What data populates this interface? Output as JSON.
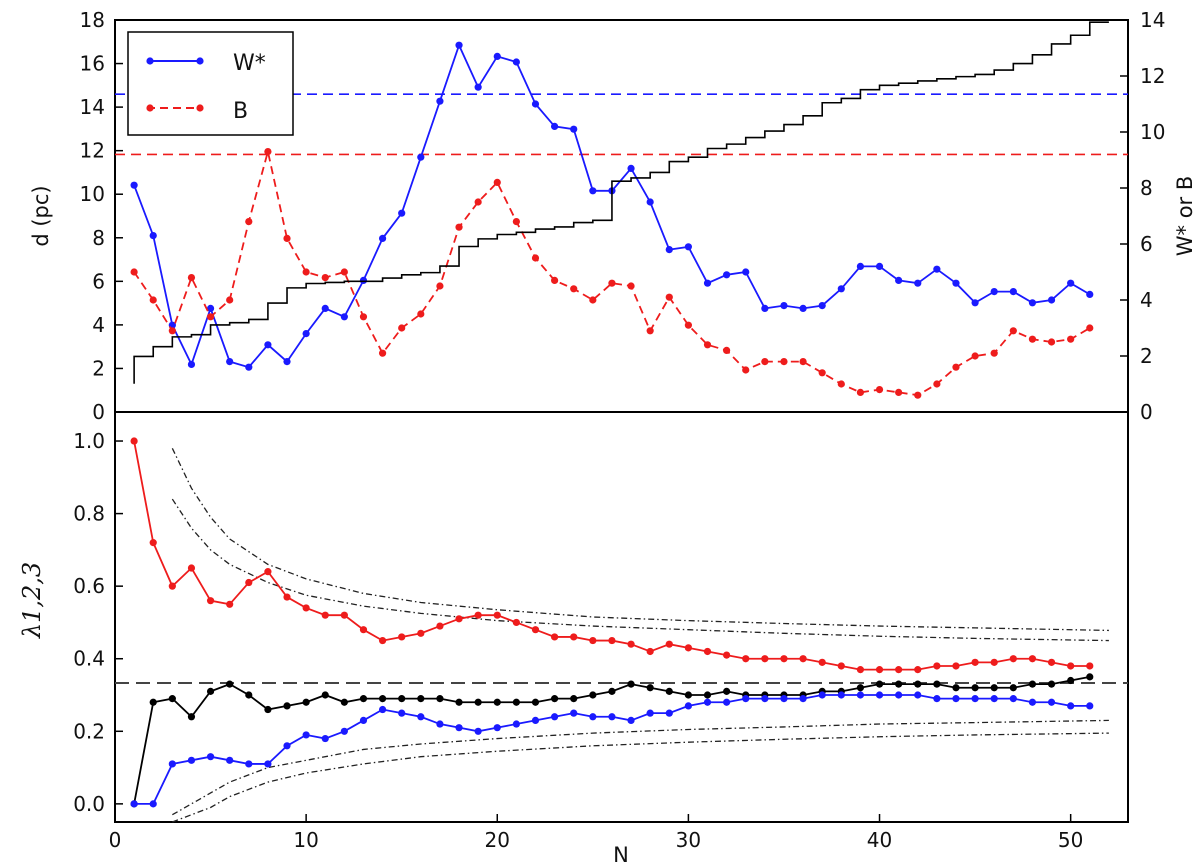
{
  "chart_data": [
    {
      "type": "line",
      "panel": "top",
      "xlabel": "",
      "ylabel": "d (pc)",
      "ylabel_right": "W* or B",
      "xlim": [
        0,
        53
      ],
      "ylim": [
        0,
        18
      ],
      "ylim_right": [
        0,
        14
      ],
      "yticks": [
        "0",
        "2",
        "4",
        "6",
        "8",
        "10",
        "12",
        "14",
        "16",
        "18"
      ],
      "yticks_right": [
        "0",
        "2",
        "4",
        "6",
        "8",
        "10",
        "12",
        "14"
      ],
      "legend": {
        "placement": "top-left",
        "entries": [
          "W*",
          "B"
        ]
      },
      "series": [
        {
          "name": "W*",
          "axis": "right",
          "color": "#1a1aff",
          "style": "solid-markers",
          "x": [
            1,
            2,
            3,
            4,
            5,
            6,
            7,
            8,
            9,
            10,
            11,
            12,
            13,
            14,
            15,
            16,
            17,
            18,
            19,
            20,
            21,
            22,
            23,
            24,
            25,
            26,
            27,
            28,
            29,
            30,
            31,
            32,
            33,
            34,
            35,
            36,
            37,
            38,
            39,
            40,
            41,
            42,
            43,
            44,
            45,
            46,
            47,
            48,
            49,
            50,
            51
          ],
          "values": [
            8.1,
            6.3,
            3.1,
            1.7,
            3.7,
            1.8,
            1.6,
            2.4,
            1.8,
            2.8,
            3.7,
            3.4,
            4.7,
            6.2,
            7.1,
            9.1,
            11.1,
            13.1,
            11.6,
            12.7,
            12.5,
            11.0,
            10.2,
            10.1,
            7.9,
            7.9,
            8.7,
            7.5,
            5.8,
            5.9,
            4.6,
            4.9,
            5.0,
            3.7,
            3.8,
            3.7,
            3.8,
            4.4,
            5.2,
            5.2,
            4.7,
            4.6,
            5.1,
            4.6,
            3.9,
            4.3,
            4.3,
            3.9,
            4.0,
            4.6,
            4.2
          ]
        },
        {
          "name": "B",
          "axis": "right",
          "color": "#ee1c1c",
          "style": "dashed-markers",
          "x": [
            1,
            2,
            3,
            4,
            5,
            6,
            7,
            8,
            9,
            10,
            11,
            12,
            13,
            14,
            15,
            16,
            17,
            18,
            19,
            20,
            21,
            22,
            23,
            24,
            25,
            26,
            27,
            28,
            29,
            30,
            31,
            32,
            33,
            34,
            35,
            36,
            37,
            38,
            39,
            40,
            41,
            42,
            43,
            44,
            45,
            46,
            47,
            48,
            49,
            50,
            51
          ],
          "values": [
            5.0,
            4.0,
            2.9,
            4.8,
            3.4,
            4.0,
            6.8,
            9.3,
            6.2,
            5.0,
            4.8,
            5.0,
            3.4,
            2.1,
            3.0,
            3.5,
            4.5,
            6.6,
            7.5,
            8.2,
            6.8,
            5.5,
            4.7,
            4.4,
            4.0,
            4.6,
            4.5,
            2.9,
            4.1,
            3.1,
            2.4,
            2.2,
            1.5,
            1.8,
            1.8,
            1.8,
            1.4,
            1.0,
            0.7,
            0.8,
            0.7,
            0.6,
            1.0,
            1.6,
            2.0,
            2.1,
            2.9,
            2.6,
            2.5,
            2.6,
            3.0
          ]
        },
        {
          "name": "d (pc)",
          "axis": "left",
          "color": "#000000",
          "style": "step",
          "x": [
            1,
            2,
            3,
            4,
            5,
            6,
            7,
            8,
            9,
            10,
            11,
            12,
            13,
            14,
            15,
            16,
            17,
            18,
            19,
            20,
            21,
            22,
            23,
            24,
            25,
            26,
            27,
            28,
            29,
            30,
            31,
            32,
            33,
            34,
            35,
            36,
            37,
            38,
            39,
            40,
            41,
            42,
            43,
            44,
            45,
            46,
            47,
            48,
            49,
            50,
            51,
            52
          ],
          "values": [
            2.55,
            3.0,
            3.45,
            3.55,
            4.0,
            4.1,
            4.25,
            5.0,
            5.7,
            5.9,
            5.95,
            6.0,
            6.0,
            6.15,
            6.3,
            6.4,
            6.7,
            7.6,
            7.95,
            8.15,
            8.25,
            8.4,
            8.5,
            8.7,
            8.8,
            10.6,
            10.75,
            11.0,
            11.5,
            11.7,
            12.1,
            12.3,
            12.6,
            12.9,
            13.2,
            13.6,
            14.2,
            14.4,
            14.8,
            15.0,
            15.1,
            15.2,
            15.3,
            15.4,
            15.5,
            15.7,
            16.0,
            16.4,
            16.9,
            17.3,
            17.9,
            17.9
          ]
        }
      ],
      "hlines": [
        {
          "axis": "right",
          "value": 11.35,
          "color": "#1a1aff",
          "style": "dashed"
        },
        {
          "axis": "right",
          "value": 9.2,
          "color": "#ee1c1c",
          "style": "dashed"
        }
      ]
    },
    {
      "type": "line",
      "panel": "bottom",
      "xlabel": "N",
      "ylabel": "λ1,2,3",
      "xlim": [
        0,
        53
      ],
      "ylim": [
        -0.05,
        1.08
      ],
      "xticks": [
        "0",
        "10",
        "20",
        "30",
        "40",
        "50"
      ],
      "yticks": [
        "0.0",
        "0.2",
        "0.4",
        "0.6",
        "0.8",
        "1.0"
      ],
      "series": [
        {
          "axis": "left",
          "color": "#ee1c1c",
          "style": "solid-markers",
          "x": [
            1,
            2,
            3,
            4,
            5,
            6,
            7,
            8,
            9,
            10,
            11,
            12,
            13,
            14,
            15,
            16,
            17,
            18,
            19,
            20,
            21,
            22,
            23,
            24,
            25,
            26,
            27,
            28,
            29,
            30,
            31,
            32,
            33,
            34,
            35,
            36,
            37,
            38,
            39,
            40,
            41,
            42,
            43,
            44,
            45,
            46,
            47,
            48,
            49,
            50,
            51
          ],
          "values": [
            1.0,
            0.72,
            0.6,
            0.65,
            0.56,
            0.55,
            0.61,
            0.64,
            0.57,
            0.54,
            0.52,
            0.52,
            0.48,
            0.45,
            0.46,
            0.47,
            0.49,
            0.51,
            0.52,
            0.52,
            0.5,
            0.48,
            0.46,
            0.46,
            0.45,
            0.45,
            0.44,
            0.42,
            0.44,
            0.43,
            0.42,
            0.41,
            0.4,
            0.4,
            0.4,
            0.4,
            0.39,
            0.38,
            0.37,
            0.37,
            0.37,
            0.37,
            0.38,
            0.38,
            0.39,
            0.39,
            0.4,
            0.4,
            0.39,
            0.38,
            0.38
          ]
        },
        {
          "axis": "left",
          "color": "#000000",
          "style": "solid-markers",
          "x": [
            1,
            2,
            3,
            4,
            5,
            6,
            7,
            8,
            9,
            10,
            11,
            12,
            13,
            14,
            15,
            16,
            17,
            18,
            19,
            20,
            21,
            22,
            23,
            24,
            25,
            26,
            27,
            28,
            29,
            30,
            31,
            32,
            33,
            34,
            35,
            36,
            37,
            38,
            39,
            40,
            41,
            42,
            43,
            44,
            45,
            46,
            47,
            48,
            49,
            50,
            51
          ],
          "values": [
            0.0,
            0.28,
            0.29,
            0.24,
            0.31,
            0.33,
            0.3,
            0.26,
            0.27,
            0.28,
            0.3,
            0.28,
            0.29,
            0.29,
            0.29,
            0.29,
            0.29,
            0.28,
            0.28,
            0.28,
            0.28,
            0.28,
            0.29,
            0.29,
            0.3,
            0.31,
            0.33,
            0.32,
            0.31,
            0.3,
            0.3,
            0.31,
            0.3,
            0.3,
            0.3,
            0.3,
            0.31,
            0.31,
            0.32,
            0.33,
            0.33,
            0.33,
            0.33,
            0.32,
            0.32,
            0.32,
            0.32,
            0.33,
            0.33,
            0.34,
            0.35
          ]
        },
        {
          "axis": "left",
          "color": "#1a1aff",
          "style": "solid-markers",
          "x": [
            1,
            2,
            3,
            4,
            5,
            6,
            7,
            8,
            9,
            10,
            11,
            12,
            13,
            14,
            15,
            16,
            17,
            18,
            19,
            20,
            21,
            22,
            23,
            24,
            25,
            26,
            27,
            28,
            29,
            30,
            31,
            32,
            33,
            34,
            35,
            36,
            37,
            38,
            39,
            40,
            41,
            42,
            43,
            44,
            45,
            46,
            47,
            48,
            49,
            50,
            51
          ],
          "values": [
            0.0,
            0.0,
            0.11,
            0.12,
            0.13,
            0.12,
            0.11,
            0.11,
            0.16,
            0.19,
            0.18,
            0.2,
            0.23,
            0.26,
            0.25,
            0.24,
            0.22,
            0.21,
            0.2,
            0.21,
            0.22,
            0.23,
            0.24,
            0.25,
            0.24,
            0.24,
            0.23,
            0.25,
            0.25,
            0.27,
            0.28,
            0.28,
            0.29,
            0.29,
            0.29,
            0.29,
            0.3,
            0.3,
            0.3,
            0.3,
            0.3,
            0.3,
            0.29,
            0.29,
            0.29,
            0.29,
            0.29,
            0.28,
            0.28,
            0.27,
            0.27
          ]
        }
      ],
      "reference_curves": [
        {
          "style": "dash-dot",
          "x": [
            3,
            4,
            5,
            6,
            8,
            10,
            13,
            16,
            20,
            25,
            30,
            35,
            40,
            45,
            52
          ],
          "values": [
            0.98,
            0.87,
            0.79,
            0.73,
            0.66,
            0.62,
            0.58,
            0.555,
            0.535,
            0.515,
            0.505,
            0.497,
            0.49,
            0.485,
            0.478
          ]
        },
        {
          "style": "dash-dot",
          "x": [
            3,
            4,
            5,
            6,
            8,
            10,
            13,
            16,
            20,
            25,
            30,
            35,
            40,
            45,
            52
          ],
          "values": [
            0.84,
            0.76,
            0.7,
            0.66,
            0.61,
            0.575,
            0.545,
            0.525,
            0.505,
            0.49,
            0.48,
            0.47,
            0.462,
            0.456,
            0.45
          ]
        },
        {
          "style": "dash-dot",
          "x": [
            3,
            4,
            5,
            6,
            8,
            10,
            13,
            16,
            20,
            25,
            30,
            35,
            40,
            45,
            52
          ],
          "values": [
            -0.03,
            0.0,
            0.03,
            0.06,
            0.1,
            0.12,
            0.15,
            0.165,
            0.18,
            0.195,
            0.205,
            0.212,
            0.22,
            0.224,
            0.23
          ]
        },
        {
          "style": "dash-dot",
          "x": [
            3,
            4,
            5,
            6,
            8,
            10,
            13,
            16,
            20,
            25,
            30,
            35,
            40,
            45,
            52
          ],
          "values": [
            -0.05,
            -0.03,
            -0.01,
            0.02,
            0.06,
            0.085,
            0.11,
            0.13,
            0.145,
            0.16,
            0.17,
            0.178,
            0.185,
            0.19,
            0.195
          ]
        }
      ],
      "hlines": [
        {
          "axis": "left",
          "value": 0.333,
          "color": "#444444",
          "style": "dashed"
        }
      ]
    }
  ]
}
